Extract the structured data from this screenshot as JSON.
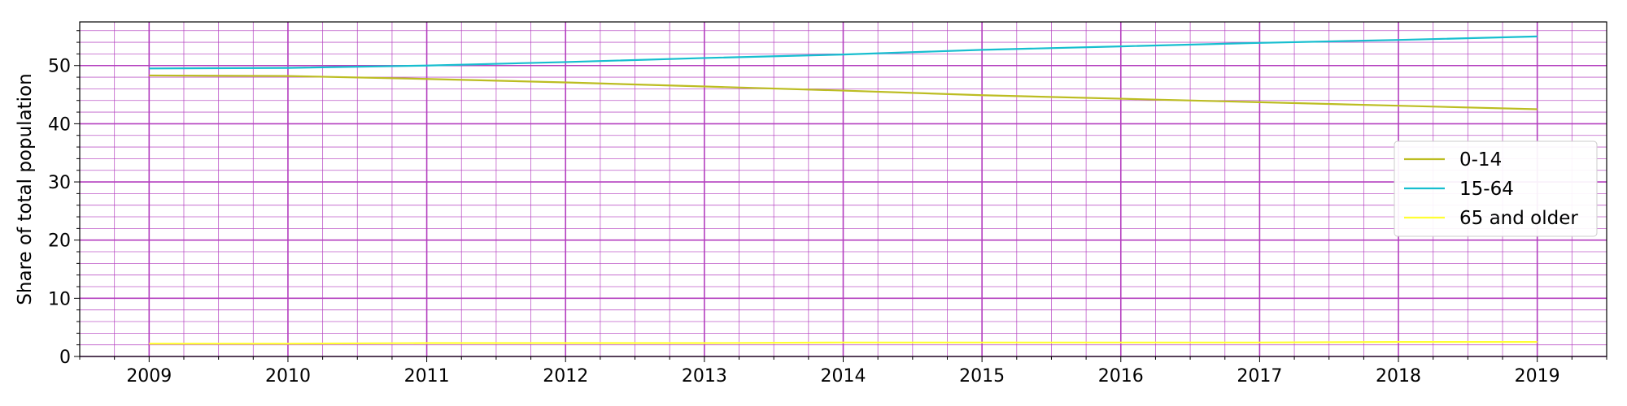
{
  "chart_data": {
    "type": "line",
    "title": "",
    "xlabel": "",
    "ylabel": "Share of total population",
    "x": [
      2009,
      2010,
      2011,
      2012,
      2013,
      2014,
      2015,
      2016,
      2017,
      2018,
      2019
    ],
    "xlim": [
      2008.5,
      2019.5
    ],
    "ylim": [
      0,
      57.5
    ],
    "xticks": [
      2009,
      2010,
      2011,
      2012,
      2013,
      2014,
      2015,
      2016,
      2017,
      2018,
      2019
    ],
    "yticks": [
      0,
      10,
      20,
      30,
      40,
      50
    ],
    "grid": true,
    "grid_color": "#b43fbf",
    "legend_position": "center-right",
    "series": [
      {
        "name": "0-14",
        "color": "#bcbd22",
        "values": [
          48.3,
          48.2,
          47.7,
          47.1,
          46.4,
          45.7,
          44.9,
          44.3,
          43.7,
          43.1,
          42.5
        ]
      },
      {
        "name": "15-64",
        "color": "#17becf",
        "values": [
          49.5,
          49.6,
          50.0,
          50.6,
          51.3,
          51.9,
          52.7,
          53.3,
          53.9,
          54.4,
          55.0
        ]
      },
      {
        "name": "65 and older",
        "color": "#ffff33",
        "values": [
          2.2,
          2.2,
          2.3,
          2.3,
          2.3,
          2.4,
          2.4,
          2.4,
          2.4,
          2.5,
          2.5
        ]
      }
    ]
  }
}
